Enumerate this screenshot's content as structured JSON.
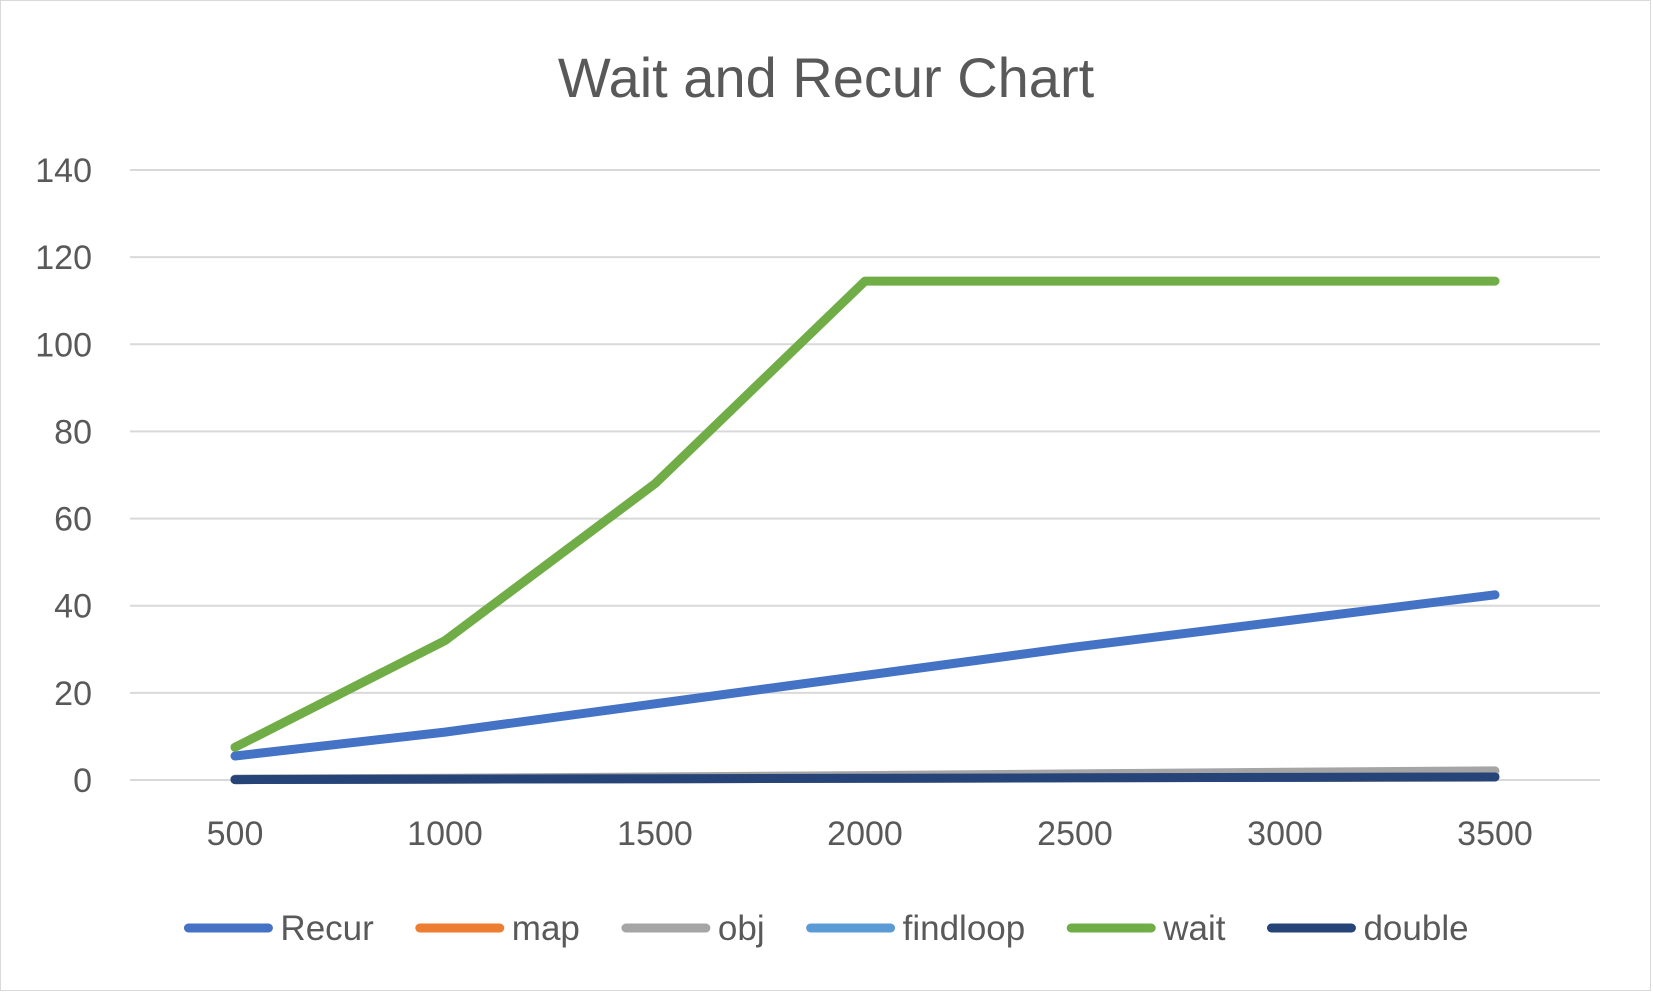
{
  "chart_data": {
    "type": "line",
    "title": "Wait and Recur Chart",
    "xlabel": "",
    "ylabel": "",
    "categories": [
      "500",
      "1000",
      "1500",
      "2000",
      "2500",
      "3000",
      "3500"
    ],
    "ylim": [
      0,
      140
    ],
    "yticks": [
      "0",
      "20",
      "40",
      "60",
      "80",
      "100",
      "120",
      "140"
    ],
    "grid": true,
    "legend_position": "bottom",
    "series": [
      {
        "name": "Recur",
        "color": "#4472C4",
        "values": [
          5.5,
          11,
          17.5,
          24,
          30.5,
          36.5,
          42.5
        ]
      },
      {
        "name": "map",
        "color": "#ED7D31",
        "values": [
          0.1,
          0.2,
          0.3,
          0.4,
          0.5,
          0.6,
          0.7
        ]
      },
      {
        "name": "obj",
        "color": "#A5A5A5",
        "values": [
          0.2,
          0.4,
          0.7,
          1.0,
          1.4,
          1.8,
          2.1
        ]
      },
      {
        "name": "findloop",
        "color": "#5B9BD5",
        "values": [
          0.1,
          0.2,
          0.3,
          0.4,
          0.5,
          0.6,
          0.8
        ]
      },
      {
        "name": "wait",
        "color": "#70AD47",
        "values": [
          7.5,
          32,
          68,
          114.5,
          114.5,
          114.5,
          114.5
        ]
      },
      {
        "name": "double",
        "color": "#264478",
        "values": [
          0.1,
          0.2,
          0.3,
          0.4,
          0.5,
          0.6,
          0.7
        ]
      }
    ]
  }
}
